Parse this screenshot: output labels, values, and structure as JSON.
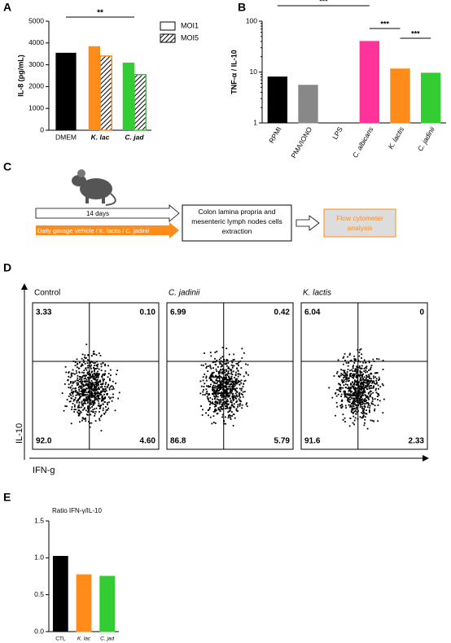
{
  "panel_labels": [
    "A",
    "B",
    "C",
    "D",
    "E"
  ],
  "chart_data": [
    {
      "type": "bar",
      "y_label": "IL-8 (pg/mL)",
      "categories": [
        "DMEM",
        "K. lac",
        "C. jad"
      ],
      "category_colors": [
        "#000000",
        "#ff8c1a",
        "#33cc33"
      ],
      "series": [
        {
          "name": "MOI1",
          "values": [
            3550,
            3850,
            3100
          ]
        },
        {
          "name": "MOI5",
          "values": [
            null,
            3400,
            2550
          ]
        }
      ],
      "ylim": [
        0,
        5000
      ],
      "yticks": [
        0,
        1000,
        2000,
        3000,
        4000,
        5000
      ],
      "annotations": [
        "**"
      ]
    },
    {
      "type": "bar",
      "y_label": "TNF-α / IL-10",
      "log_scale": true,
      "categories": [
        "RPMI",
        "PMA/IONO",
        "LPS",
        "C. albicans",
        "K. lactis",
        "C. jadinii"
      ],
      "category_colors": [
        "#000000",
        "#888888",
        "#ffffff",
        "#ff3399",
        "#ff8c1a",
        "#33cc33"
      ],
      "values": [
        8,
        5.5,
        1,
        40,
        11.5,
        9.5
      ],
      "ylim": [
        1,
        100
      ],
      "yticks": [
        1,
        10,
        100
      ],
      "annotations": [
        "***",
        "***",
        "***"
      ]
    },
    {
      "type": "bar",
      "title": "Ratio IFN-γ/IL-10",
      "categories": [
        "CTL",
        "K. lac",
        "C. jad"
      ],
      "category_colors": [
        "#000000",
        "#ff8c1a",
        "#33cc33"
      ],
      "values": [
        1.02,
        0.77,
        0.75
      ],
      "ylim": [
        0,
        1.5
      ],
      "yticks": [
        {
          "value": 0,
          "label": "0.0"
        },
        0.5,
        {
          "value": 1,
          "label": "1.0"
        },
        1.5
      ]
    }
  ],
  "diagram": {
    "duration": "14 days",
    "treatment": "Daily gavage Vehicle / K. lactis / C. jadinii",
    "extraction": "Colon lamina propria and mesenteric lymph nodes cells extraction",
    "analysis": "Flow cytometer analysis"
  },
  "flow": {
    "y_label": "IL-10",
    "x_label": "IFN-g",
    "plots": [
      {
        "title": "Control",
        "quadrants": [
          "3.33",
          "0.10",
          "92.0",
          "4.60"
        ]
      },
      {
        "title": "C. jadinii",
        "quadrants": [
          "6.99",
          "0.42",
          "86.8",
          "5.79"
        ]
      },
      {
        "title": "K. lactis",
        "quadrants": [
          "6.04",
          "0",
          "91.6",
          "2.33"
        ]
      }
    ]
  }
}
